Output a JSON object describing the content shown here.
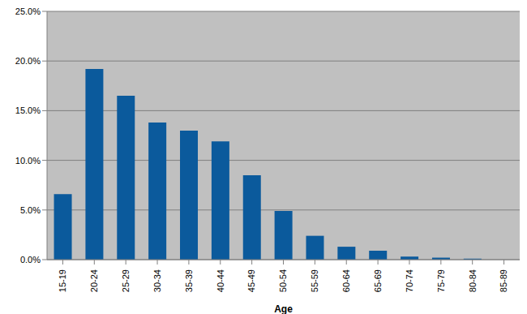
{
  "chart_data": {
    "type": "bar",
    "x_label": "Age",
    "categories": [
      "15-19",
      "20-24",
      "25-29",
      "30-34",
      "35-39",
      "40-44",
      "45-49",
      "50-54",
      "55-59",
      "60-64",
      "65-69",
      "70-74",
      "75-79",
      "80-84",
      "85-89"
    ],
    "values": [
      6.6,
      19.2,
      16.5,
      13.8,
      13.0,
      11.9,
      8.5,
      4.9,
      2.4,
      1.3,
      0.9,
      0.3,
      0.2,
      0.1,
      0.0
    ],
    "color": "#0b5a9c",
    "ylim": [
      0,
      25
    ],
    "yticks": [
      {
        "value": 0,
        "label": "0.0%"
      },
      {
        "value": 5,
        "label": "5.0%"
      },
      {
        "value": 10,
        "label": "10.0%"
      },
      {
        "value": 15,
        "label": "15.0%"
      },
      {
        "value": 20,
        "label": "20.0%"
      },
      {
        "value": 25,
        "label": "25.0%"
      }
    ],
    "grid": true
  }
}
